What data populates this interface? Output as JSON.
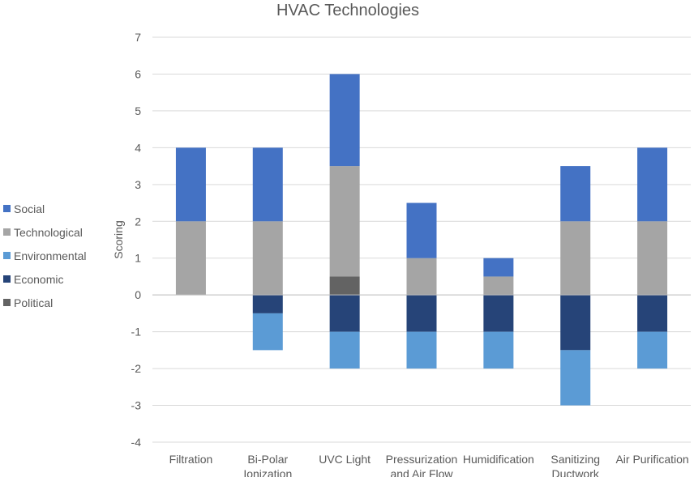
{
  "chart_data": {
    "type": "bar",
    "stacked": true,
    "title": "HVAC Technologies",
    "ylabel": "Scoring",
    "xlabel": "",
    "ylim": [
      -4,
      7
    ],
    "yticks": [
      -4,
      -3,
      -2,
      -1,
      0,
      1,
      2,
      3,
      4,
      5,
      6,
      7
    ],
    "grid": true,
    "legend_position": "left",
    "categories": [
      [
        "Filtration"
      ],
      [
        "Bi-Polar",
        "Ionization"
      ],
      [
        "UVC Light"
      ],
      [
        "Pressurization",
        "and Air Flow"
      ],
      [
        "Humidification"
      ],
      [
        "Sanitizing",
        "Ductwork"
      ],
      [
        "Air Purification"
      ]
    ],
    "series": [
      {
        "name": "Social",
        "color": "#4472C4",
        "values": [
          2,
          2,
          2.5,
          1.5,
          0.5,
          1.5,
          2
        ]
      },
      {
        "name": "Technological",
        "color": "#A5A5A5",
        "values": [
          2,
          2,
          3,
          1,
          0.5,
          2,
          2
        ]
      },
      {
        "name": "Environmental",
        "color": "#5B9BD5",
        "values": [
          0,
          -1,
          -1,
          -1,
          -1,
          -1.5,
          -1
        ]
      },
      {
        "name": "Economic",
        "color": "#264478",
        "values": [
          0,
          -0.5,
          -1,
          -1,
          -1,
          -1.5,
          -1
        ]
      },
      {
        "name": "Political",
        "color": "#636363",
        "values": [
          0,
          0,
          0.5,
          0,
          0,
          0,
          0
        ]
      }
    ]
  }
}
